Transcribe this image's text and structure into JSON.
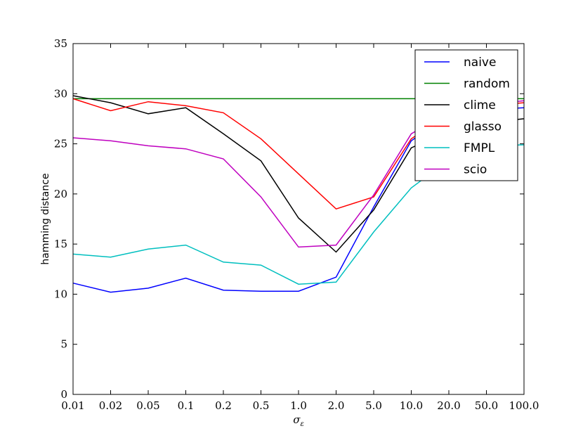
{
  "chart_data": {
    "type": "line",
    "xlabel": "σ",
    "xlabel_sub": "ε",
    "ylabel": "hamming distance",
    "categories": [
      "0.01",
      "0.02",
      "0.05",
      "0.1",
      "0.2",
      "0.5",
      "1.0",
      "2.0",
      "5.0",
      "10.0",
      "20.0",
      "50.0",
      "100.0"
    ],
    "ylim": [
      0,
      35
    ],
    "yticks": [
      "0",
      "5",
      "10",
      "15",
      "20",
      "25",
      "30",
      "35"
    ],
    "grid": false,
    "legend_position": "top-right",
    "series": [
      {
        "name": "naive",
        "color": "#0000ff",
        "values": [
          11.1,
          10.2,
          10.6,
          11.6,
          10.4,
          10.3,
          10.3,
          11.7,
          18.7,
          25.3,
          27.9,
          28.4,
          28.6
        ]
      },
      {
        "name": "random",
        "color": "#008000",
        "values": [
          29.5,
          29.5,
          29.5,
          29.5,
          29.5,
          29.5,
          29.5,
          29.5,
          29.5,
          29.5,
          29.5,
          29.5,
          29.5
        ]
      },
      {
        "name": "clime",
        "color": "#000000",
        "values": [
          29.8,
          29.1,
          28.0,
          28.6,
          26.0,
          23.3,
          17.6,
          14.2,
          18.4,
          24.6,
          26.3,
          27.1,
          27.5
        ]
      },
      {
        "name": "glasso",
        "color": "#ff0000",
        "values": [
          29.5,
          28.3,
          29.2,
          28.8,
          28.1,
          25.5,
          22.0,
          18.5,
          19.7,
          25.5,
          28.0,
          28.8,
          29.1
        ]
      },
      {
        "name": "FMPL",
        "color": "#00bfbf",
        "values": [
          14.0,
          13.7,
          14.5,
          14.9,
          13.2,
          12.9,
          11.0,
          11.2,
          16.2,
          20.6,
          23.4,
          24.8,
          24.9
        ]
      },
      {
        "name": "scio",
        "color": "#bf00bf",
        "values": [
          25.6,
          25.3,
          24.8,
          24.5,
          23.5,
          19.7,
          14.7,
          14.9,
          19.9,
          26.0,
          28.2,
          28.9,
          29.3
        ]
      }
    ]
  }
}
